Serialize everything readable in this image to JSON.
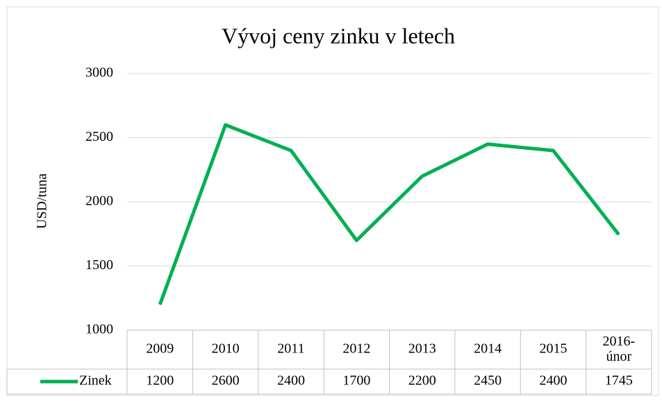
{
  "chart_data": {
    "type": "line",
    "title": "Vývoj ceny zinku v letech",
    "y_label": "USD/tuna",
    "categories": [
      "2009",
      "2010",
      "2011",
      "2012",
      "2013",
      "2014",
      "2015",
      "2016-únor"
    ],
    "series": [
      {
        "name": "Zinek",
        "color": "#00b050",
        "values": [
          1200,
          2600,
          2400,
          1700,
          2200,
          2450,
          2400,
          1745
        ]
      }
    ],
    "ylim": [
      1000,
      3000
    ],
    "yticks": [
      1000,
      1500,
      2000,
      2500,
      3000
    ],
    "grid": true,
    "legend": "bottom"
  }
}
